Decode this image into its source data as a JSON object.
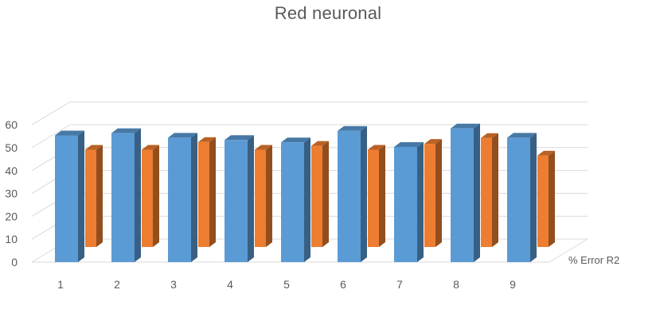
{
  "chart_data": {
    "type": "bar",
    "title": "Red neuronal",
    "categories": [
      "1",
      "2",
      "3",
      "4",
      "5",
      "6",
      "7",
      "8",
      "9"
    ],
    "series": [
      {
        "name": "",
        "color": "#5b9bd5",
        "values": [
          55,
          56,
          54,
          53,
          52,
          57,
          50,
          58,
          54
        ]
      },
      {
        "name": "% Error R2",
        "color": "#ed7d31",
        "values": [
          50,
          50,
          54,
          50,
          52,
          50,
          53,
          56,
          47
        ]
      }
    ],
    "ylim": [
      0,
      60
    ],
    "yticks": [
      "0",
      "10",
      "20",
      "30",
      "40",
      "50",
      "60"
    ],
    "grid": true,
    "style": "3d-clustered-column"
  }
}
